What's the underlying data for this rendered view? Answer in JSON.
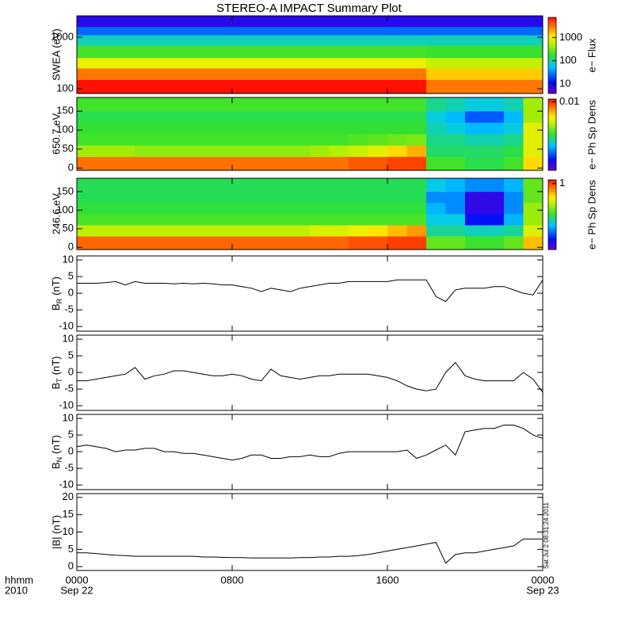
{
  "chart_data": [
    {
      "type": "heatmap",
      "title": "STEREO-A IMPACT Summary Plot",
      "ylabel": "SWEA (eV)",
      "log_y": true,
      "ylim": [
        81,
        2600
      ],
      "yticks": [
        100,
        1000
      ],
      "tbins": [
        0,
        1,
        2,
        3,
        4,
        5,
        6,
        7,
        8,
        9,
        10,
        11,
        12,
        13,
        14,
        15,
        16,
        17,
        18,
        19,
        20,
        21,
        22,
        23,
        24
      ],
      "ybins": [
        81,
        150,
        250,
        400,
        700,
        1100,
        1600,
        2600
      ],
      "z": [
        [
          8000,
          8000,
          8000,
          8000,
          8000,
          8000,
          8000,
          8000,
          8000,
          8000,
          8000,
          8000,
          8000,
          8000,
          8000,
          8000,
          8000,
          8000,
          3000,
          3000,
          3000,
          3000,
          3000,
          3000
        ],
        [
          3000,
          3000,
          3000,
          3000,
          3000,
          3000,
          3000,
          3000,
          3000,
          3000,
          3000,
          3000,
          3000,
          3000,
          3000,
          3000,
          3000,
          3000,
          1500,
          1500,
          1500,
          1500,
          1500,
          1500
        ],
        [
          900,
          900,
          900,
          900,
          900,
          900,
          900,
          900,
          900,
          900,
          900,
          900,
          900,
          900,
          900,
          900,
          900,
          900,
          600,
          600,
          600,
          600,
          600,
          600
        ],
        [
          200,
          200,
          200,
          200,
          200,
          200,
          200,
          200,
          200,
          200,
          200,
          200,
          200,
          200,
          200,
          200,
          200,
          200,
          180,
          180,
          180,
          180,
          180,
          180
        ],
        [
          80,
          80,
          80,
          80,
          80,
          80,
          80,
          80,
          80,
          80,
          80,
          80,
          80,
          80,
          80,
          80,
          80,
          80,
          80,
          80,
          80,
          80,
          80,
          80
        ],
        [
          25,
          25,
          25,
          25,
          25,
          25,
          25,
          25,
          25,
          25,
          25,
          25,
          25,
          25,
          25,
          25,
          25,
          25,
          25,
          25,
          25,
          25,
          25,
          25
        ],
        [
          8,
          8,
          8,
          8,
          8,
          8,
          8,
          8,
          8,
          8,
          8,
          8,
          8,
          8,
          8,
          8,
          8,
          8,
          8,
          8,
          8,
          8,
          8,
          8
        ]
      ],
      "colorbar": {
        "label": "e− Flux",
        "log": true,
        "zlim": [
          3.9,
          7300
        ],
        "ticks": [
          10,
          100,
          1000
        ]
      }
    },
    {
      "type": "heatmap",
      "ylabel": "650.7 eV",
      "log_y": false,
      "ylim": [
        -6,
        186
      ],
      "yticks": [
        0,
        50,
        100,
        150
      ],
      "tbins": [
        0,
        1,
        2,
        3,
        4,
        5,
        6,
        7,
        8,
        9,
        10,
        11,
        12,
        13,
        14,
        15,
        16,
        17,
        18,
        19,
        20,
        21,
        22,
        23,
        24
      ],
      "ybins": [
        -6,
        30,
        60,
        90,
        120,
        150,
        186
      ],
      "z": [
        [
          0.007,
          0.007,
          0.007,
          0.007,
          0.007,
          0.007,
          0.007,
          0.007,
          0.007,
          0.007,
          0.007,
          0.007,
          0.007,
          0.007,
          0.008,
          0.008,
          0.009,
          0.009,
          0.0012,
          0.0012,
          0.001,
          0.001,
          0.0012,
          0.004
        ],
        [
          0.002,
          0.002,
          0.002,
          0.0018,
          0.0018,
          0.0018,
          0.0018,
          0.0018,
          0.0018,
          0.0018,
          0.0018,
          0.0018,
          0.002,
          0.0022,
          0.0025,
          0.003,
          0.004,
          0.005,
          0.0009,
          0.0009,
          0.0009,
          0.0009,
          0.001,
          0.003
        ],
        [
          0.0012,
          0.0012,
          0.0012,
          0.0012,
          0.0012,
          0.0012,
          0.0012,
          0.0012,
          0.0012,
          0.0012,
          0.0012,
          0.0012,
          0.0012,
          0.0012,
          0.0013,
          0.0014,
          0.0015,
          0.0016,
          0.0008,
          0.0008,
          0.0007,
          0.0007,
          0.0008,
          0.003
        ],
        [
          0.0011,
          0.0011,
          0.0011,
          0.0011,
          0.0011,
          0.0011,
          0.0011,
          0.0011,
          0.0011,
          0.0011,
          0.0011,
          0.0011,
          0.0011,
          0.0011,
          0.0011,
          0.0011,
          0.0011,
          0.0011,
          0.0007,
          0.0006,
          0.0005,
          0.0005,
          0.0006,
          0.003
        ],
        [
          0.001,
          0.001,
          0.001,
          0.001,
          0.001,
          0.001,
          0.001,
          0.001,
          0.001,
          0.001,
          0.001,
          0.001,
          0.001,
          0.001,
          0.001,
          0.001,
          0.001,
          0.001,
          0.0006,
          0.0005,
          0.0003,
          0.0003,
          0.0005,
          0.002
        ],
        [
          0.0012,
          0.0012,
          0.0012,
          0.0012,
          0.0012,
          0.0012,
          0.0012,
          0.0012,
          0.0012,
          0.0012,
          0.0012,
          0.0012,
          0.0012,
          0.0012,
          0.0012,
          0.0012,
          0.0012,
          0.0012,
          0.0008,
          0.0007,
          0.0006,
          0.0006,
          0.0007,
          0.002
        ]
      ],
      "colorbar": {
        "label": "e− Ph Sp Dens",
        "log": true,
        "zlim": [
          0.0001,
          0.012
        ],
        "ticks": [
          0.01
        ]
      }
    },
    {
      "type": "heatmap",
      "ylabel": "246.6 eV",
      "log_y": false,
      "ylim": [
        -6,
        186
      ],
      "yticks": [
        0,
        50,
        100,
        150
      ],
      "tbins": [
        0,
        1,
        2,
        3,
        4,
        5,
        6,
        7,
        8,
        9,
        10,
        11,
        12,
        13,
        14,
        15,
        16,
        17,
        18,
        19,
        20,
        21,
        22,
        23,
        24
      ],
      "ybins": [
        -6,
        30,
        60,
        90,
        120,
        150,
        186
      ],
      "z": [
        [
          0.8,
          0.8,
          0.8,
          0.8,
          0.8,
          0.8,
          0.8,
          0.8,
          0.8,
          0.8,
          0.8,
          0.8,
          0.8,
          0.8,
          0.9,
          0.9,
          1,
          1,
          0.15,
          0.15,
          0.12,
          0.12,
          0.15,
          0.5
        ],
        [
          0.25,
          0.25,
          0.25,
          0.25,
          0.25,
          0.25,
          0.25,
          0.25,
          0.25,
          0.25,
          0.25,
          0.25,
          0.3,
          0.3,
          0.35,
          0.4,
          0.5,
          0.6,
          0.08,
          0.08,
          0.07,
          0.07,
          0.08,
          0.3
        ],
        [
          0.13,
          0.13,
          0.13,
          0.13,
          0.13,
          0.13,
          0.13,
          0.13,
          0.13,
          0.13,
          0.13,
          0.13,
          0.13,
          0.13,
          0.13,
          0.13,
          0.13,
          0.13,
          0.06,
          0.06,
          0.02,
          0.02,
          0.05,
          0.2
        ],
        [
          0.11,
          0.11,
          0.11,
          0.11,
          0.11,
          0.11,
          0.11,
          0.11,
          0.11,
          0.11,
          0.11,
          0.11,
          0.11,
          0.11,
          0.11,
          0.11,
          0.11,
          0.11,
          0.05,
          0.04,
          0.015,
          0.015,
          0.04,
          0.2
        ],
        [
          0.1,
          0.1,
          0.1,
          0.1,
          0.1,
          0.1,
          0.1,
          0.1,
          0.1,
          0.1,
          0.1,
          0.1,
          0.1,
          0.1,
          0.1,
          0.1,
          0.1,
          0.1,
          0.04,
          0.04,
          0.015,
          0.015,
          0.04,
          0.15
        ],
        [
          0.1,
          0.1,
          0.1,
          0.1,
          0.1,
          0.1,
          0.1,
          0.1,
          0.1,
          0.1,
          0.1,
          0.1,
          0.1,
          0.1,
          0.1,
          0.1,
          0.1,
          0.1,
          0.06,
          0.05,
          0.04,
          0.04,
          0.05,
          0.15
        ]
      ],
      "colorbar": {
        "label": "e− Ph Sp Dens",
        "log": true,
        "zlim": [
          0.01,
          1.3
        ],
        "ticks": [
          1
        ]
      }
    },
    {
      "type": "line",
      "ylabel": {
        "text": "B",
        "sub": "R",
        "unit": "(nT)"
      },
      "color": "#000000",
      "ylim": [
        -11.4,
        11.2
      ],
      "yticks": [
        -10,
        -5,
        0,
        5,
        10
      ],
      "x": [
        0,
        0.5,
        1,
        1.5,
        2,
        2.5,
        3,
        3.5,
        4,
        4.5,
        5,
        5.5,
        6,
        6.5,
        7,
        7.5,
        8,
        8.5,
        9,
        9.5,
        10,
        10.5,
        11,
        11.5,
        12,
        12.5,
        13,
        13.5,
        14,
        14.5,
        15,
        15.5,
        16,
        16.5,
        17,
        17.5,
        18,
        18.5,
        19,
        19.5,
        20,
        20.5,
        21,
        21.5,
        22,
        22.5,
        23,
        23.5,
        24
      ],
      "values": [
        3,
        3,
        3,
        3.2,
        3.5,
        2.5,
        3.5,
        3,
        3,
        3,
        2.8,
        3,
        2.8,
        3,
        2.8,
        2.5,
        2.5,
        2,
        1.5,
        0.5,
        1.5,
        1,
        0.5,
        1.5,
        2,
        2.5,
        3,
        3,
        3.5,
        3.5,
        3.5,
        3.5,
        3.5,
        4,
        4,
        4,
        4,
        -1,
        -2.5,
        1,
        1.5,
        1.5,
        1.5,
        2,
        2,
        1,
        0,
        -0.5,
        4
      ]
    },
    {
      "type": "line",
      "ylabel": {
        "text": "B",
        "sub": "T",
        "unit": "(nT)"
      },
      "color": "#000000",
      "ylim": [
        -11.4,
        11.2
      ],
      "yticks": [
        -10,
        -5,
        0,
        5,
        10
      ],
      "x": [
        0,
        0.5,
        1,
        1.5,
        2,
        2.5,
        3,
        3.5,
        4,
        4.5,
        5,
        5.5,
        6,
        6.5,
        7,
        7.5,
        8,
        8.5,
        9,
        9.5,
        10,
        10.5,
        11,
        11.5,
        12,
        12.5,
        13,
        13.5,
        14,
        14.5,
        15,
        15.5,
        16,
        16.5,
        17,
        17.5,
        18,
        18.5,
        19,
        19.5,
        20,
        20.5,
        21,
        21.5,
        22,
        22.5,
        23,
        23.5,
        24
      ],
      "values": [
        -2.5,
        -2.5,
        -2,
        -1.5,
        -1,
        -0.5,
        1.5,
        -2,
        -1,
        -0.5,
        0.5,
        0.5,
        0,
        -0.5,
        -1,
        -1,
        -0.5,
        -1,
        -2,
        -2.5,
        1,
        -1,
        -1.5,
        -2,
        -1.5,
        -1,
        -1,
        -0.5,
        -0.5,
        -0.5,
        -0.5,
        -1,
        -1.5,
        -2.5,
        -4,
        -5,
        -5.5,
        -5,
        0,
        3,
        -1,
        -2,
        -2.5,
        -2.5,
        -2.5,
        -2.5,
        0,
        -2,
        -6
      ]
    },
    {
      "type": "line",
      "ylabel": {
        "text": "B",
        "sub": "N",
        "unit": "(nT)"
      },
      "color": "#000000",
      "ylim": [
        -11.4,
        11.2
      ],
      "yticks": [
        -10,
        -5,
        0,
        5,
        10
      ],
      "x": [
        0,
        0.5,
        1,
        1.5,
        2,
        2.5,
        3,
        3.5,
        4,
        4.5,
        5,
        5.5,
        6,
        6.5,
        7,
        7.5,
        8,
        8.5,
        9,
        9.5,
        10,
        10.5,
        11,
        11.5,
        12,
        12.5,
        13,
        13.5,
        14,
        14.5,
        15,
        15.5,
        16,
        16.5,
        17,
        17.5,
        18,
        18.5,
        19,
        19.5,
        20,
        20.5,
        21,
        21.5,
        22,
        22.5,
        23,
        23.5,
        24
      ],
      "values": [
        1.5,
        2,
        1.5,
        1,
        0,
        0.5,
        0.5,
        1,
        1,
        0,
        0,
        -0.5,
        -0.5,
        -1,
        -1.5,
        -2,
        -2.5,
        -2,
        -1,
        -1,
        -2,
        -2,
        -1.5,
        -1.5,
        -1,
        -1.5,
        -1.5,
        -0.5,
        0,
        0,
        0,
        0,
        0,
        0,
        0.5,
        -2,
        -1,
        0.5,
        2,
        -1,
        6,
        6.5,
        7,
        7,
        8,
        8,
        7,
        5,
        4
      ]
    },
    {
      "type": "line",
      "ylabel": "|B| (nT)",
      "color": "#000000",
      "ylim": [
        -1.1,
        21.1
      ],
      "yticks": [
        0,
        5,
        10,
        15,
        20
      ],
      "x": [
        0,
        0.5,
        1,
        1.5,
        2,
        2.5,
        3,
        3.5,
        4,
        4.5,
        5,
        5.5,
        6,
        6.5,
        7,
        7.5,
        8,
        8.5,
        9,
        9.5,
        10,
        10.5,
        11,
        11.5,
        12,
        12.5,
        13,
        13.5,
        14,
        14.5,
        15,
        15.5,
        16,
        16.5,
        17,
        17.5,
        18,
        18.5,
        19,
        19.5,
        20,
        20.5,
        21,
        21.5,
        22,
        22.5,
        23,
        23.5,
        24
      ],
      "values": [
        4,
        4,
        3.8,
        3.5,
        3.3,
        3.2,
        3,
        3,
        3,
        3,
        3,
        3,
        3,
        2.8,
        2.8,
        2.7,
        2.6,
        2.6,
        2.5,
        2.5,
        2.5,
        2.5,
        2.5,
        2.6,
        2.6,
        2.8,
        2.8,
        3,
        3,
        3.2,
        3.5,
        4,
        4.5,
        5,
        5.5,
        6,
        6.5,
        7,
        1,
        3.5,
        4,
        4,
        4.5,
        5,
        5.5,
        6,
        8,
        8,
        8
      ],
      "xlim": [
        0,
        24
      ],
      "xticks": [
        {
          "value": 0,
          "label": "0000"
        },
        {
          "value": 8,
          "label": "0800"
        },
        {
          "value": 16,
          "label": "1600"
        },
        {
          "value": 24,
          "label": "0000"
        }
      ],
      "xdates": [
        {
          "value": 0,
          "label": "Sep 22"
        },
        {
          "value": 24,
          "label": "Sep 23"
        }
      ],
      "xlabel_lines": [
        "hhmm",
        "2010"
      ],
      "timestamp": "Sat Jul  2 08:31:24 2011"
    }
  ]
}
